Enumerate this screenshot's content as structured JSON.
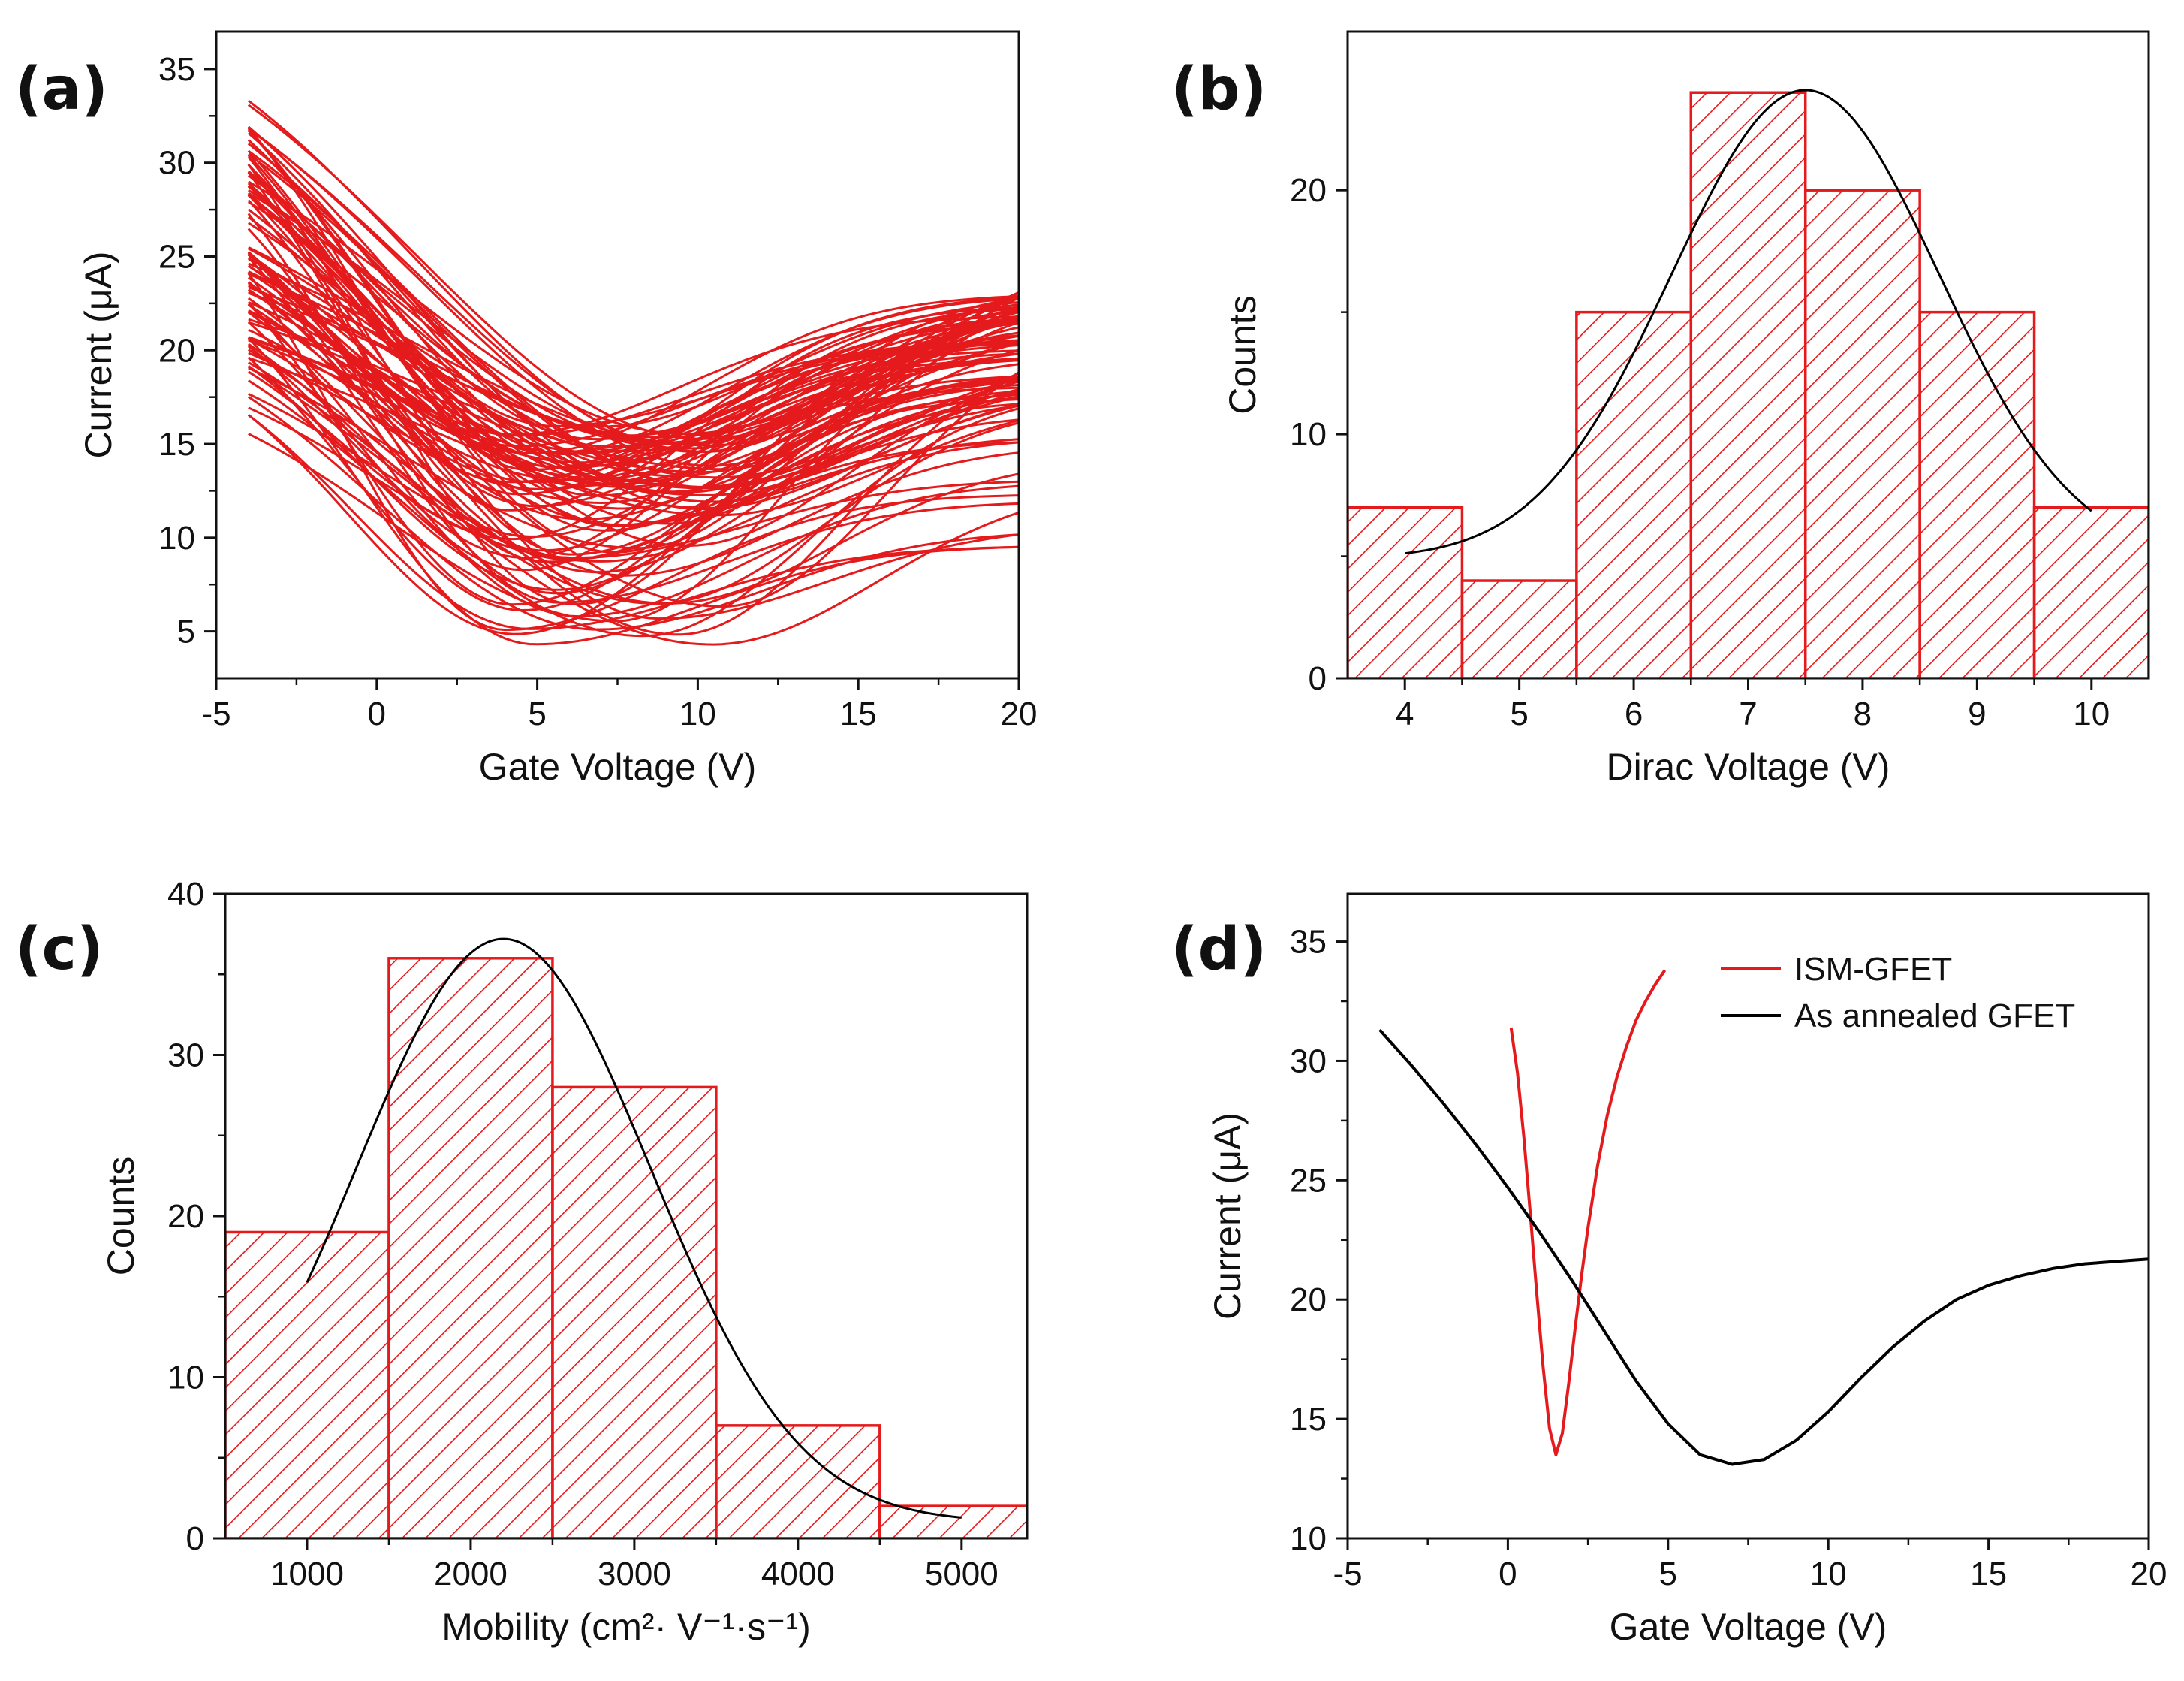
{
  "chart_data": [
    {
      "id": "a",
      "panel_label": "(a)",
      "type": "line",
      "title": "",
      "xlabel": "Gate Voltage (V)",
      "ylabel": "Current (μA)",
      "xlim": [
        -5,
        20
      ],
      "ylim": [
        2.5,
        37
      ],
      "xticks": [
        -5,
        0,
        5,
        10,
        15,
        20
      ],
      "yticks": [
        5,
        10,
        15,
        20,
        25,
        30,
        35
      ],
      "series_color": "#e41a1c",
      "x_range": [
        -4,
        20
      ],
      "curve_count": 100,
      "left_current_range": [
        15,
        34
      ],
      "min_current_range": [
        4.3,
        16
      ],
      "dirac_voltage_range": [
        4,
        11
      ],
      "right_current_range": [
        9.5,
        23.5
      ]
    },
    {
      "id": "b",
      "panel_label": "(b)",
      "type": "bar",
      "title": "",
      "xlabel": "Dirac Voltage (V)",
      "ylabel": "Counts",
      "xlim": [
        3.5,
        10.5
      ],
      "ylim": [
        0,
        26.5
      ],
      "xticks": [
        4,
        5,
        6,
        7,
        8,
        9,
        10
      ],
      "yticks": [
        0,
        10,
        20
      ],
      "bar_color": "#e41a1c",
      "bins": [
        {
          "from": 3.5,
          "to": 4.5,
          "count": 7
        },
        {
          "from": 4.5,
          "to": 5.5,
          "count": 4
        },
        {
          "from": 5.5,
          "to": 6.5,
          "count": 15
        },
        {
          "from": 6.5,
          "to": 7.5,
          "count": 24
        },
        {
          "from": 7.5,
          "to": 8.5,
          "count": 20
        },
        {
          "from": 8.5,
          "to": 9.5,
          "count": 15
        },
        {
          "from": 9.5,
          "to": 10.5,
          "count": 7
        }
      ],
      "fit": {
        "type": "gaussian",
        "baseline": 4.9,
        "amplitude": 19.2,
        "center": 7.5,
        "sigma": 1.17,
        "x_range": [
          4,
          10
        ],
        "color": "#000000"
      }
    },
    {
      "id": "c",
      "panel_label": "(c)",
      "type": "bar",
      "title": "",
      "xlabel": "Mobility (cm²· V⁻¹·s⁻¹)",
      "ylabel": "Counts",
      "xlim": [
        500,
        5400
      ],
      "ylim": [
        0,
        40
      ],
      "xticks": [
        1000,
        2000,
        3000,
        4000,
        5000
      ],
      "yticks": [
        0,
        10,
        20,
        30,
        40
      ],
      "bar_color": "#e41a1c",
      "bins": [
        {
          "from": 500,
          "to": 1500,
          "count": 19
        },
        {
          "from": 1500,
          "to": 2500,
          "count": 36
        },
        {
          "from": 2500,
          "to": 3500,
          "count": 28
        },
        {
          "from": 3500,
          "to": 4500,
          "count": 7
        },
        {
          "from": 4500,
          "to": 5500,
          "count": 2
        }
      ],
      "fit": {
        "type": "gaussian",
        "baseline": 1,
        "amplitude": 36.2,
        "center": 2200,
        "sigma": 900,
        "x_range": [
          1000,
          5000
        ],
        "color": "#000000"
      }
    },
    {
      "id": "d",
      "panel_label": "(d)",
      "type": "line",
      "title": "",
      "xlabel": "Gate Voltage (V)",
      "ylabel": "Current (μA)",
      "xlim": [
        -5,
        20
      ],
      "ylim": [
        10,
        37
      ],
      "xticks": [
        -5,
        0,
        5,
        10,
        15,
        20
      ],
      "yticks": [
        10,
        15,
        20,
        25,
        30,
        35
      ],
      "legend": {
        "position": "top-right"
      },
      "series": [
        {
          "name": "ISM-GFET",
          "color": "#e41a1c",
          "x": [
            0.1,
            0.3,
            0.5,
            0.7,
            0.9,
            1.1,
            1.3,
            1.5,
            1.7,
            1.9,
            2.1,
            2.3,
            2.5,
            2.8,
            3.1,
            3.4,
            3.7,
            4.0,
            4.3,
            4.6,
            4.9
          ],
          "y": [
            31.4,
            29.5,
            26.8,
            23.6,
            20.3,
            17.2,
            14.6,
            13.5,
            14.4,
            16.5,
            18.8,
            21.0,
            23.0,
            25.6,
            27.7,
            29.3,
            30.6,
            31.7,
            32.5,
            33.2,
            33.8
          ]
        },
        {
          "name": "As annealed GFET",
          "color": "#000000",
          "x": [
            -4,
            -3,
            -2,
            -1,
            0,
            1,
            2,
            3,
            4,
            5,
            6,
            7,
            8,
            9,
            10,
            11,
            12,
            13,
            14,
            15,
            16,
            17,
            18,
            19,
            20
          ],
          "y": [
            31.3,
            29.8,
            28.2,
            26.5,
            24.7,
            22.8,
            20.8,
            18.7,
            16.6,
            14.8,
            13.5,
            13.1,
            13.3,
            14.1,
            15.3,
            16.7,
            18.0,
            19.1,
            20.0,
            20.6,
            21.0,
            21.3,
            21.5,
            21.6,
            21.7
          ]
        }
      ]
    }
  ]
}
